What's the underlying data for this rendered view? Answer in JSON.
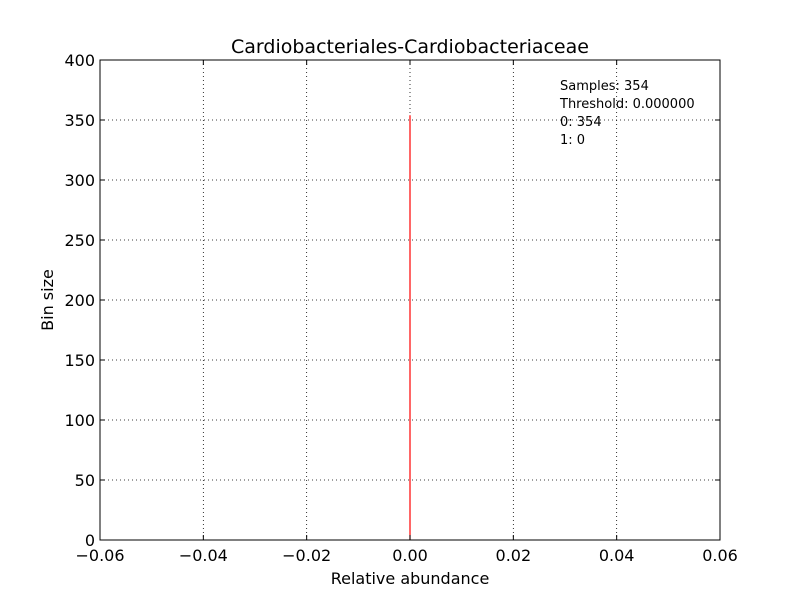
{
  "chart_data": {
    "type": "bar",
    "title": "Cardiobacteriales-Cardiobacteriaceae",
    "xlabel": "Relative abundance",
    "ylabel": "Bin size",
    "xlim": [
      -0.06,
      0.06
    ],
    "ylim": [
      0,
      400
    ],
    "xticks": [
      -0.06,
      -0.04,
      -0.02,
      0.0,
      0.02,
      0.04,
      0.06
    ],
    "xtick_labels": [
      "−0.06",
      "−0.04",
      "−0.02",
      "0.00",
      "0.02",
      "0.04",
      "0.06"
    ],
    "yticks": [
      0,
      50,
      100,
      150,
      200,
      250,
      300,
      350,
      400
    ],
    "ytick_labels": [
      "0",
      "50",
      "100",
      "150",
      "200",
      "250",
      "300",
      "350",
      "400"
    ],
    "grid": true,
    "bars": [
      {
        "x": 0.0,
        "height": 354,
        "color": "#ff0000"
      }
    ],
    "annotations": [
      "Samples: 354",
      "Threshold: 0.000000",
      "0: 354",
      "1: 0"
    ],
    "annotation_position": "top-right"
  }
}
